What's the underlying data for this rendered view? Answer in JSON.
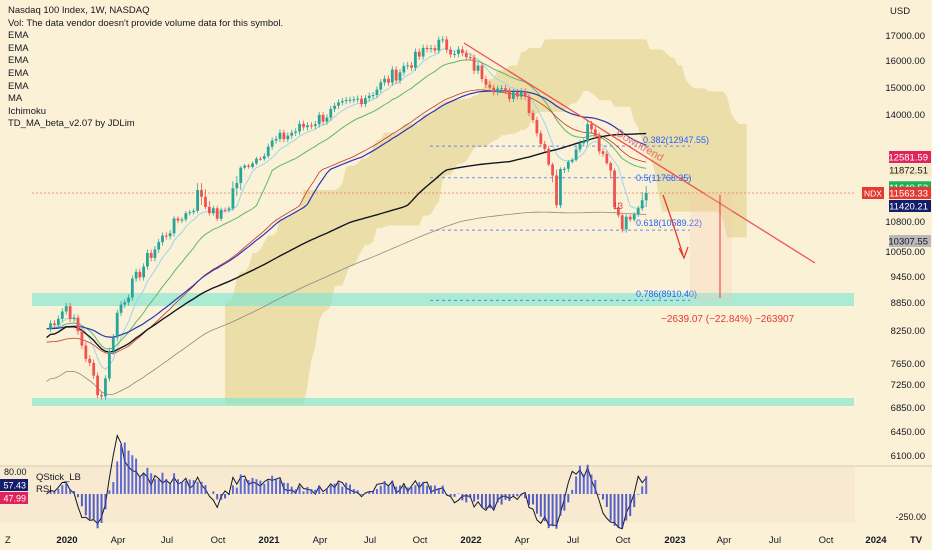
{
  "header": {
    "title": "Nasdaq 100 Index, 1W, NASDAQ",
    "volume_note": "Vol: The data vendor doesn't provide volume data for this symbol.",
    "indicators": [
      "EMA",
      "EMA",
      "EMA",
      "EMA",
      "EMA",
      "MA",
      "Ichimoku",
      "TD_MA_beta_v2.07 by JDLim"
    ]
  },
  "price_axis": {
    "currency": "USD",
    "ticks": [
      17000,
      16000,
      15000,
      14000,
      10800,
      10050,
      9450,
      8850,
      8250,
      7650,
      7250,
      6850,
      6450,
      6100
    ]
  },
  "price_tags": [
    {
      "text": "12581.59",
      "color": "#e0245e",
      "value": 12581.59
    },
    {
      "text": "11872.51",
      "color": "#f5e9c8",
      "value": 11872.51
    },
    {
      "text": "11640.53",
      "color": "#1fb15a",
      "value": 11640.53
    },
    {
      "text": "11563.33",
      "color": "#e53935",
      "value": 11563.33,
      "symbol": "NDX"
    },
    {
      "text": "11420.21",
      "color": "#131e6b",
      "value": 11420.21
    },
    {
      "text": "10307.55",
      "color": "#b9b9b9",
      "value": 10307.55
    }
  ],
  "time_axis": [
    "2020",
    "Apr",
    "Jul",
    "Oct",
    "2021",
    "Apr",
    "Jul",
    "Oct",
    "2022",
    "Apr",
    "Jul",
    "Oct",
    "2023",
    "Apr",
    "Jul",
    "Oct",
    "2024"
  ],
  "annotations": {
    "downtrend": "Downtrend",
    "fib_382": "0.382(12947.55)",
    "fib_5": "0.5(11768.35)",
    "fib_618": "0.618(10589.22)",
    "fib_786": "0.786(8910.40)",
    "measure": "−2639.07 (−22.84%) −263907",
    "marker_13": "13"
  },
  "chart_data": {
    "type": "line",
    "symbol": "NDX",
    "timeframe": "1W",
    "x": [
      "2020-01",
      "2020-03",
      "2020-04",
      "2020-06",
      "2020-09",
      "2020-10",
      "2021-01",
      "2021-04",
      "2021-07",
      "2021-11",
      "2021-12",
      "2022-03",
      "2022-04",
      "2022-06",
      "2022-08",
      "2022-10",
      "2022-11"
    ],
    "series": [
      {
        "values": [
          8800,
          7000,
          8700,
          10000,
          11600,
          11000,
          13000,
          13900,
          14800,
          16700,
          16500,
          14700,
          15000,
          11600,
          13700,
          10700,
          11563
        ]
      }
    ],
    "last_price": 11563.33,
    "current_change": "−2639.07 (−22.84%)"
  },
  "sub_pane": {
    "labels": [
      "QStick_LB",
      "RSI"
    ],
    "axis_top": "80.00",
    "left_values": [
      "57.43",
      "47.99"
    ],
    "right_value": "-250.00"
  },
  "corner_labels": {
    "z": "Z",
    "tv": "TV"
  },
  "colors": {
    "up": "#26a69a",
    "down": "#ef5350",
    "ema_blue": "#2b35b8",
    "ma_black": "#131722",
    "trend": "#ef5350",
    "zone": "#7fe6d1"
  }
}
